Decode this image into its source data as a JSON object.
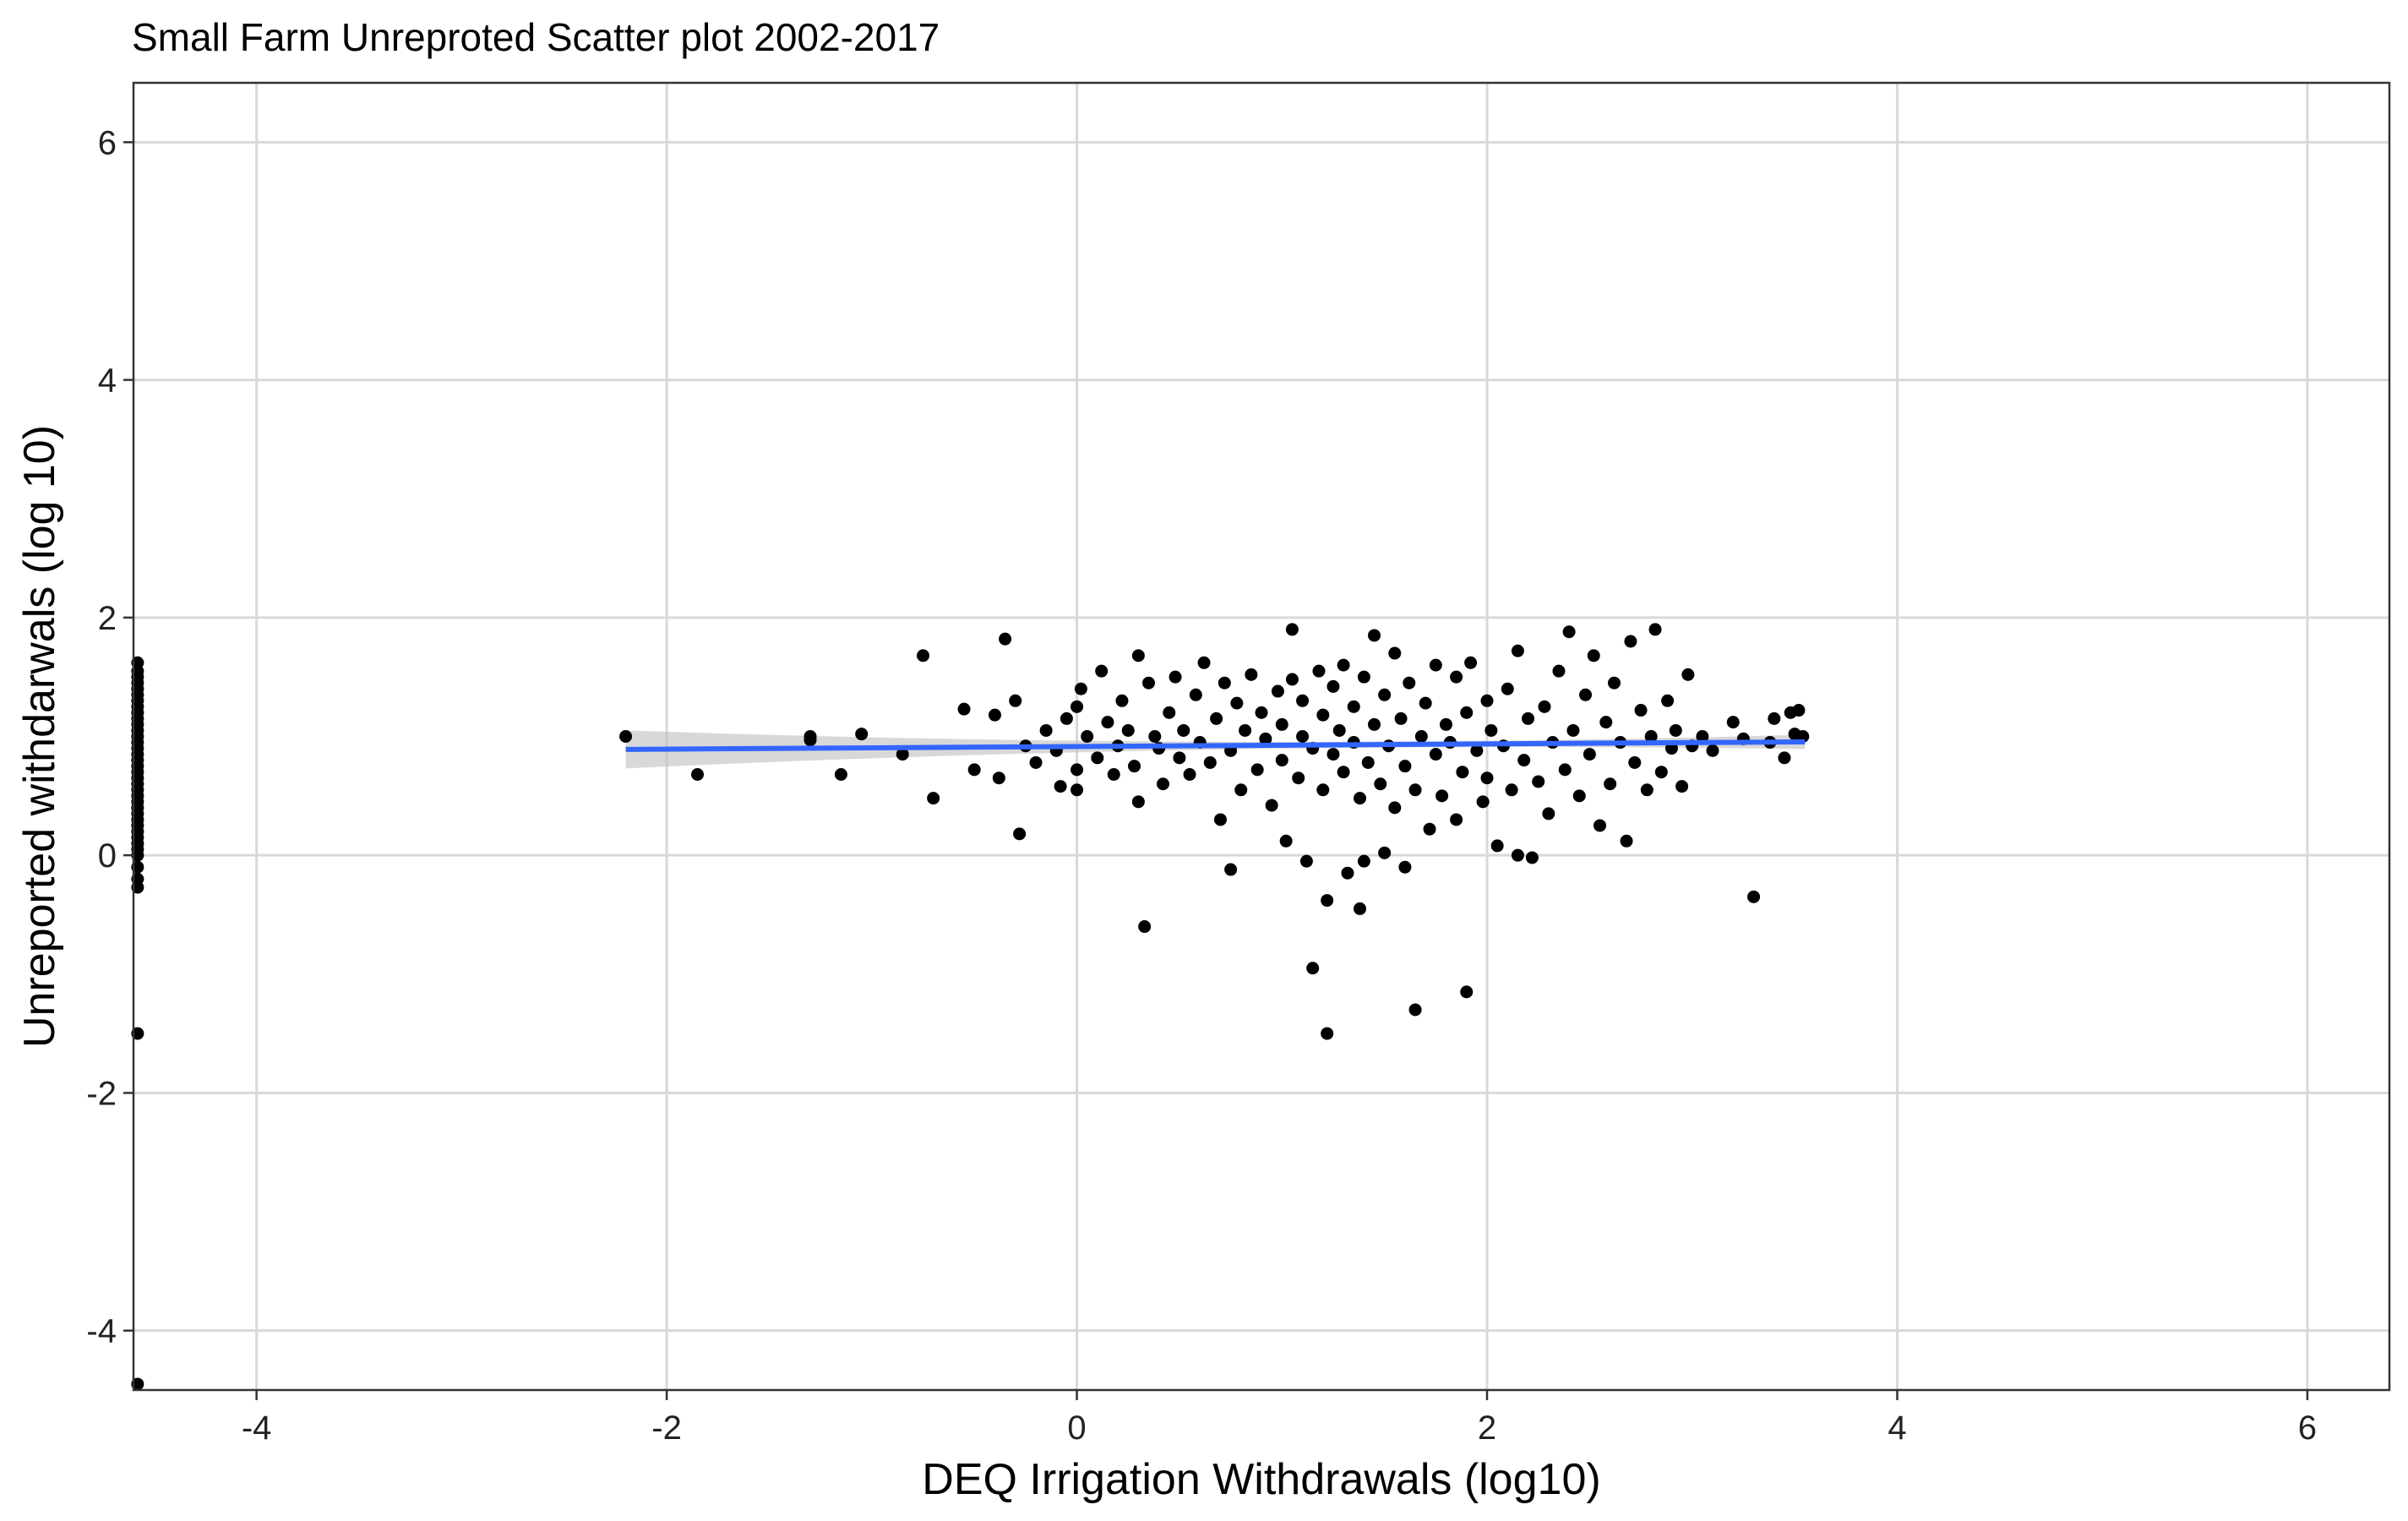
{
  "chart_data": {
    "type": "scatter",
    "title": "Small Farm Unreproted Scatter plot 2002-2017",
    "xlabel": "DEQ Irrigation Withdrawals (log10)",
    "ylabel": "Unreported withdarwals (log 10)",
    "xlim": [
      -4.6,
      6.4
    ],
    "ylim": [
      -4.5,
      6.5
    ],
    "x_ticks": [
      -4,
      -2,
      0,
      2,
      4,
      6
    ],
    "y_ticks": [
      -4,
      -2,
      0,
      2,
      4,
      6
    ],
    "x_tick_labels": [
      "-4",
      "-2",
      "0",
      "2",
      "4",
      "6"
    ],
    "y_tick_labels": [
      "-4",
      "-2",
      "0",
      "2",
      "4",
      "6"
    ],
    "grid": true,
    "point_color": "#000000",
    "trend_line": {
      "method": "linear",
      "color": "#3366FF",
      "band_color": "#BEBEBE",
      "x_range": [
        -2.2,
        3.55
      ],
      "intercept": 0.915,
      "slope": 0.011,
      "band_halfwidth_at_edge": 0.16,
      "band_halfwidth_at_mean": 0.025,
      "x_mean": 1.6
    },
    "series": [
      {
        "points": [
          [
            -4.58,
            1.62
          ],
          [
            -4.58,
            1.55
          ],
          [
            -4.58,
            1.5
          ],
          [
            -4.58,
            1.45
          ],
          [
            -4.58,
            1.4
          ],
          [
            -4.58,
            1.35
          ],
          [
            -4.58,
            1.3
          ],
          [
            -4.58,
            1.25
          ],
          [
            -4.58,
            1.2
          ],
          [
            -4.58,
            1.15
          ],
          [
            -4.58,
            1.1
          ],
          [
            -4.58,
            1.05
          ],
          [
            -4.58,
            1.0
          ],
          [
            -4.58,
            0.95
          ],
          [
            -4.58,
            0.9
          ],
          [
            -4.58,
            0.85
          ],
          [
            -4.58,
            0.8
          ],
          [
            -4.58,
            0.75
          ],
          [
            -4.58,
            0.7
          ],
          [
            -4.58,
            0.65
          ],
          [
            -4.58,
            0.6
          ],
          [
            -4.58,
            0.55
          ],
          [
            -4.58,
            0.5
          ],
          [
            -4.58,
            0.45
          ],
          [
            -4.58,
            0.4
          ],
          [
            -4.58,
            0.35
          ],
          [
            -4.58,
            0.3
          ],
          [
            -4.58,
            0.25
          ],
          [
            -4.58,
            0.2
          ],
          [
            -4.58,
            0.15
          ],
          [
            -4.58,
            0.1
          ],
          [
            -4.58,
            0.05
          ],
          [
            -4.58,
            0.0
          ],
          [
            -4.58,
            -0.1
          ],
          [
            -4.58,
            -0.2
          ],
          [
            -4.58,
            -0.27
          ],
          [
            -4.58,
            -1.5
          ],
          [
            -4.58,
            -4.45
          ],
          [
            -2.2,
            1.0
          ],
          [
            -1.85,
            0.68
          ],
          [
            -1.3,
            1.0
          ],
          [
            -1.3,
            0.97
          ],
          [
            -1.15,
            0.68
          ],
          [
            -1.05,
            1.02
          ],
          [
            -0.85,
            0.85
          ],
          [
            -0.75,
            1.68
          ],
          [
            -0.7,
            0.48
          ],
          [
            -0.55,
            1.23
          ],
          [
            -0.5,
            0.72
          ],
          [
            -0.4,
            1.18
          ],
          [
            -0.38,
            0.65
          ],
          [
            -0.35,
            1.82
          ],
          [
            -0.3,
            1.3
          ],
          [
            -0.28,
            0.18
          ],
          [
            -0.25,
            0.92
          ],
          [
            -0.2,
            0.78
          ],
          [
            -0.15,
            1.05
          ],
          [
            -0.1,
            0.88
          ],
          [
            -0.08,
            0.58
          ],
          [
            -0.05,
            1.15
          ],
          [
            0.0,
            1.25
          ],
          [
            0.0,
            0.72
          ],
          [
            0.0,
            0.55
          ],
          [
            0.02,
            1.4
          ],
          [
            0.05,
            1.0
          ],
          [
            0.1,
            0.82
          ],
          [
            0.12,
            1.55
          ],
          [
            0.15,
            1.12
          ],
          [
            0.18,
            0.68
          ],
          [
            0.2,
            0.92
          ],
          [
            0.22,
            1.3
          ],
          [
            0.25,
            1.05
          ],
          [
            0.28,
            0.75
          ],
          [
            0.3,
            0.45
          ],
          [
            0.3,
            1.68
          ],
          [
            0.33,
            -0.6
          ],
          [
            0.35,
            1.45
          ],
          [
            0.38,
            1.0
          ],
          [
            0.4,
            0.9
          ],
          [
            0.42,
            0.6
          ],
          [
            0.45,
            1.2
          ],
          [
            0.48,
            1.5
          ],
          [
            0.5,
            0.82
          ],
          [
            0.52,
            1.05
          ],
          [
            0.55,
            0.68
          ],
          [
            0.58,
            1.35
          ],
          [
            0.6,
            0.95
          ],
          [
            0.62,
            1.62
          ],
          [
            0.65,
            0.78
          ],
          [
            0.68,
            1.15
          ],
          [
            0.7,
            0.3
          ],
          [
            0.72,
            1.45
          ],
          [
            0.75,
            -0.12
          ],
          [
            0.75,
            0.88
          ],
          [
            0.78,
            1.28
          ],
          [
            0.8,
            0.55
          ],
          [
            0.82,
            1.05
          ],
          [
            0.85,
            1.52
          ],
          [
            0.88,
            0.72
          ],
          [
            0.9,
            1.2
          ],
          [
            0.92,
            0.98
          ],
          [
            0.95,
            0.42
          ],
          [
            0.98,
            1.38
          ],
          [
            1.0,
            0.8
          ],
          [
            1.0,
            1.1
          ],
          [
            1.02,
            0.12
          ],
          [
            1.05,
            1.48
          ],
          [
            1.05,
            1.9
          ],
          [
            1.08,
            0.65
          ],
          [
            1.1,
            1.0
          ],
          [
            1.1,
            1.3
          ],
          [
            1.12,
            -0.05
          ],
          [
            1.15,
            0.9
          ],
          [
            1.15,
            -0.95
          ],
          [
            1.18,
            1.55
          ],
          [
            1.2,
            0.55
          ],
          [
            1.2,
            1.18
          ],
          [
            1.22,
            -0.38
          ],
          [
            1.22,
            -1.5
          ],
          [
            1.25,
            0.85
          ],
          [
            1.25,
            1.42
          ],
          [
            1.28,
            1.05
          ],
          [
            1.3,
            0.7
          ],
          [
            1.3,
            1.6
          ],
          [
            1.32,
            -0.15
          ],
          [
            1.35,
            0.95
          ],
          [
            1.35,
            1.25
          ],
          [
            1.38,
            0.48
          ],
          [
            1.38,
            -0.45
          ],
          [
            1.4,
            1.5
          ],
          [
            1.4,
            -0.05
          ],
          [
            1.42,
            0.78
          ],
          [
            1.45,
            1.1
          ],
          [
            1.45,
            1.85
          ],
          [
            1.48,
            0.6
          ],
          [
            1.5,
            1.35
          ],
          [
            1.5,
            0.02
          ],
          [
            1.52,
            0.92
          ],
          [
            1.55,
            1.7
          ],
          [
            1.55,
            0.4
          ],
          [
            1.58,
            1.15
          ],
          [
            1.6,
            0.75
          ],
          [
            1.6,
            -0.1
          ],
          [
            1.62,
            1.45
          ],
          [
            1.65,
            -1.3
          ],
          [
            1.65,
            0.55
          ],
          [
            1.68,
            1.0
          ],
          [
            1.7,
            1.28
          ],
          [
            1.72,
            0.22
          ],
          [
            1.75,
            0.85
          ],
          [
            1.75,
            1.6
          ],
          [
            1.78,
            0.5
          ],
          [
            1.8,
            1.1
          ],
          [
            1.82,
            0.95
          ],
          [
            1.85,
            1.5
          ],
          [
            1.85,
            0.3
          ],
          [
            1.88,
            0.7
          ],
          [
            1.9,
            1.2
          ],
          [
            1.9,
            -1.15
          ],
          [
            1.92,
            1.62
          ],
          [
            1.95,
            0.88
          ],
          [
            1.98,
            0.45
          ],
          [
            2.0,
            1.3
          ],
          [
            2.0,
            0.65
          ],
          [
            2.02,
            1.05
          ],
          [
            2.05,
            0.08
          ],
          [
            2.08,
            0.92
          ],
          [
            2.1,
            1.4
          ],
          [
            2.12,
            0.55
          ],
          [
            2.15,
            1.72
          ],
          [
            2.15,
            0.0
          ],
          [
            2.18,
            0.8
          ],
          [
            2.2,
            1.15
          ],
          [
            2.22,
            -0.02
          ],
          [
            2.25,
            0.62
          ],
          [
            2.28,
            1.25
          ],
          [
            2.3,
            0.35
          ],
          [
            2.32,
            0.95
          ],
          [
            2.35,
            1.55
          ],
          [
            2.38,
            0.72
          ],
          [
            2.4,
            1.88
          ],
          [
            2.42,
            1.05
          ],
          [
            2.45,
            0.5
          ],
          [
            2.48,
            1.35
          ],
          [
            2.5,
            0.85
          ],
          [
            2.52,
            1.68
          ],
          [
            2.55,
            0.25
          ],
          [
            2.58,
            1.12
          ],
          [
            2.6,
            0.6
          ],
          [
            2.62,
            1.45
          ],
          [
            2.65,
            0.95
          ],
          [
            2.68,
            0.12
          ],
          [
            2.7,
            1.8
          ],
          [
            2.72,
            0.78
          ],
          [
            2.75,
            1.22
          ],
          [
            2.78,
            0.55
          ],
          [
            2.8,
            1.0
          ],
          [
            2.82,
            1.9
          ],
          [
            2.85,
            0.7
          ],
          [
            2.88,
            1.3
          ],
          [
            2.9,
            0.9
          ],
          [
            2.92,
            1.05
          ],
          [
            2.95,
            0.58
          ],
          [
            2.98,
            1.52
          ],
          [
            3.0,
            0.92
          ],
          [
            3.05,
            1.0
          ],
          [
            3.1,
            0.88
          ],
          [
            3.2,
            1.12
          ],
          [
            3.25,
            0.98
          ],
          [
            3.3,
            -0.35
          ],
          [
            3.38,
            0.95
          ],
          [
            3.4,
            1.15
          ],
          [
            3.45,
            0.82
          ],
          [
            3.48,
            1.2
          ],
          [
            3.5,
            1.02
          ],
          [
            3.52,
            1.22
          ],
          [
            3.54,
            1.0
          ]
        ]
      }
    ]
  }
}
